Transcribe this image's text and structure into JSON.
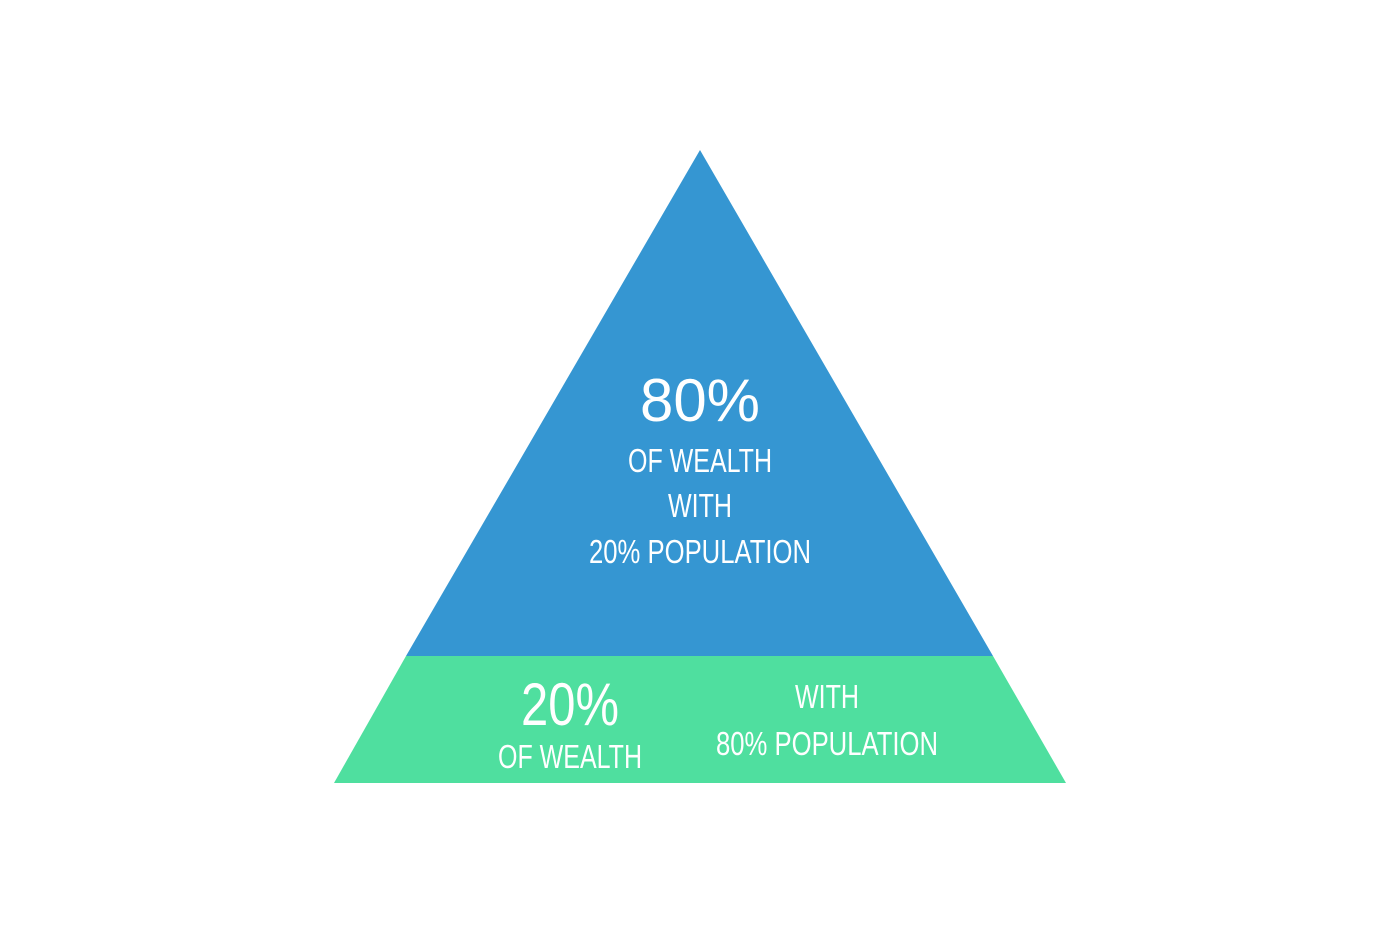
{
  "pyramid": {
    "top": {
      "color": "#3596d2",
      "percent": "80%",
      "line1": "OF WEALTH",
      "line2": "WITH",
      "line3": "20% POPULATION"
    },
    "bottom": {
      "color": "#4fdf9f",
      "percent": "20%",
      "wealth_label": "OF WEALTH",
      "with_label": "WITH",
      "population_label": "80% POPULATION"
    }
  }
}
